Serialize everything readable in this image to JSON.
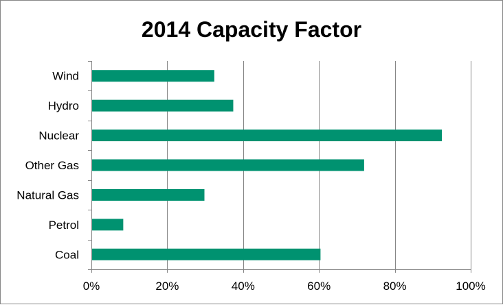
{
  "chart_data": {
    "type": "bar",
    "orientation": "horizontal",
    "title": "2014 Capacity Factor",
    "categories": [
      "Wind",
      "Hydro",
      "Nuclear",
      "Other Gas",
      "Natural Gas",
      "Petrol",
      "Coal"
    ],
    "values": [
      0.324,
      0.374,
      0.924,
      0.719,
      0.298,
      0.084,
      0.604
    ],
    "xlim": [
      0,
      1
    ],
    "x_ticks": [
      0,
      0.2,
      0.4,
      0.6,
      0.8,
      1.0
    ],
    "x_tick_labels": [
      "0%",
      "20%",
      "40%",
      "60%",
      "80%",
      "100%"
    ],
    "xlabel": "",
    "ylabel": "",
    "grid": "vertical",
    "legend": "none",
    "bar_color": "#009270"
  }
}
